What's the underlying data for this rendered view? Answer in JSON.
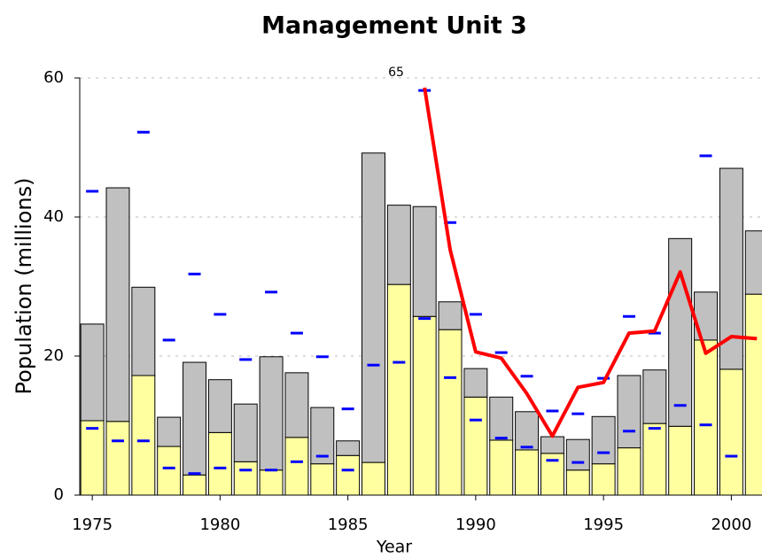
{
  "chart_data": {
    "type": "bar",
    "stacked": true,
    "title": "Management Unit 3",
    "x_label": "Year",
    "y_label": "Population (millions)",
    "annotation": "65",
    "x": [
      1975,
      1976,
      1977,
      1978,
      1979,
      1980,
      1981,
      1982,
      1983,
      1984,
      1985,
      1986,
      1987,
      1988,
      1989,
      1990,
      1991,
      1992,
      1993,
      1994,
      1995,
      1996,
      1997,
      1998,
      1999,
      2000,
      2001
    ],
    "xlim": [
      1974.51,
      2001.2
    ],
    "xticks": [
      1975,
      1980,
      1985,
      1990,
      1995,
      2000
    ],
    "ylim": [
      0,
      60
    ],
    "yticks": [
      0,
      20,
      40,
      60
    ],
    "grid": true,
    "series": [
      {
        "color": "#ffffa0",
        "values": [
          10.7,
          10.6,
          17.2,
          7.0,
          2.9,
          9.0,
          4.8,
          3.6,
          8.3,
          4.5,
          5.7,
          4.7,
          30.3,
          25.7,
          23.8,
          14.1,
          7.9,
          6.5,
          6.0,
          3.6,
          4.5,
          6.8,
          10.3,
          9.9,
          22.3,
          18.1,
          28.9
        ]
      },
      {
        "color": "#c0c0c0",
        "values": [
          13.9,
          33.6,
          12.7,
          4.2,
          16.2,
          7.6,
          8.3,
          16.3,
          9.3,
          8.1,
          2.1,
          44.5,
          11.4,
          15.8,
          4.0,
          4.1,
          6.2,
          5.5,
          2.4,
          4.4,
          6.8,
          10.4,
          7.7,
          27.0,
          6.9,
          28.9,
          9.1
        ]
      }
    ],
    "markers": [
      {
        "color": "#0000ff",
        "values": [
          43.7,
          null,
          52.2,
          22.3,
          31.8,
          26.0,
          19.5,
          29.2,
          23.3,
          19.9,
          12.4,
          18.7,
          19.1,
          58.2,
          39.2,
          26.0,
          20.5,
          17.1,
          12.1,
          11.7,
          16.8,
          25.7,
          23.3,
          12.9,
          48.8,
          null,
          null
        ]
      },
      {
        "color": "#0000ff",
        "values": [
          9.6,
          7.8,
          7.8,
          3.9,
          3.1,
          3.9,
          3.6,
          3.6,
          4.8,
          5.6,
          3.6,
          null,
          null,
          25.4,
          16.9,
          10.8,
          8.2,
          6.9,
          5.0,
          4.7,
          6.1,
          9.2,
          9.6,
          null,
          10.1,
          5.6,
          null
        ]
      }
    ],
    "line": {
      "color": "#ff0000",
      "values": [
        null,
        null,
        null,
        null,
        null,
        null,
        null,
        null,
        null,
        null,
        null,
        null,
        null,
        58.6,
        35.3,
        20.6,
        19.7,
        14.6,
        8.5,
        15.5,
        16.2,
        23.3,
        23.6,
        32.1,
        20.4,
        22.8,
        22.5
      ]
    }
  }
}
